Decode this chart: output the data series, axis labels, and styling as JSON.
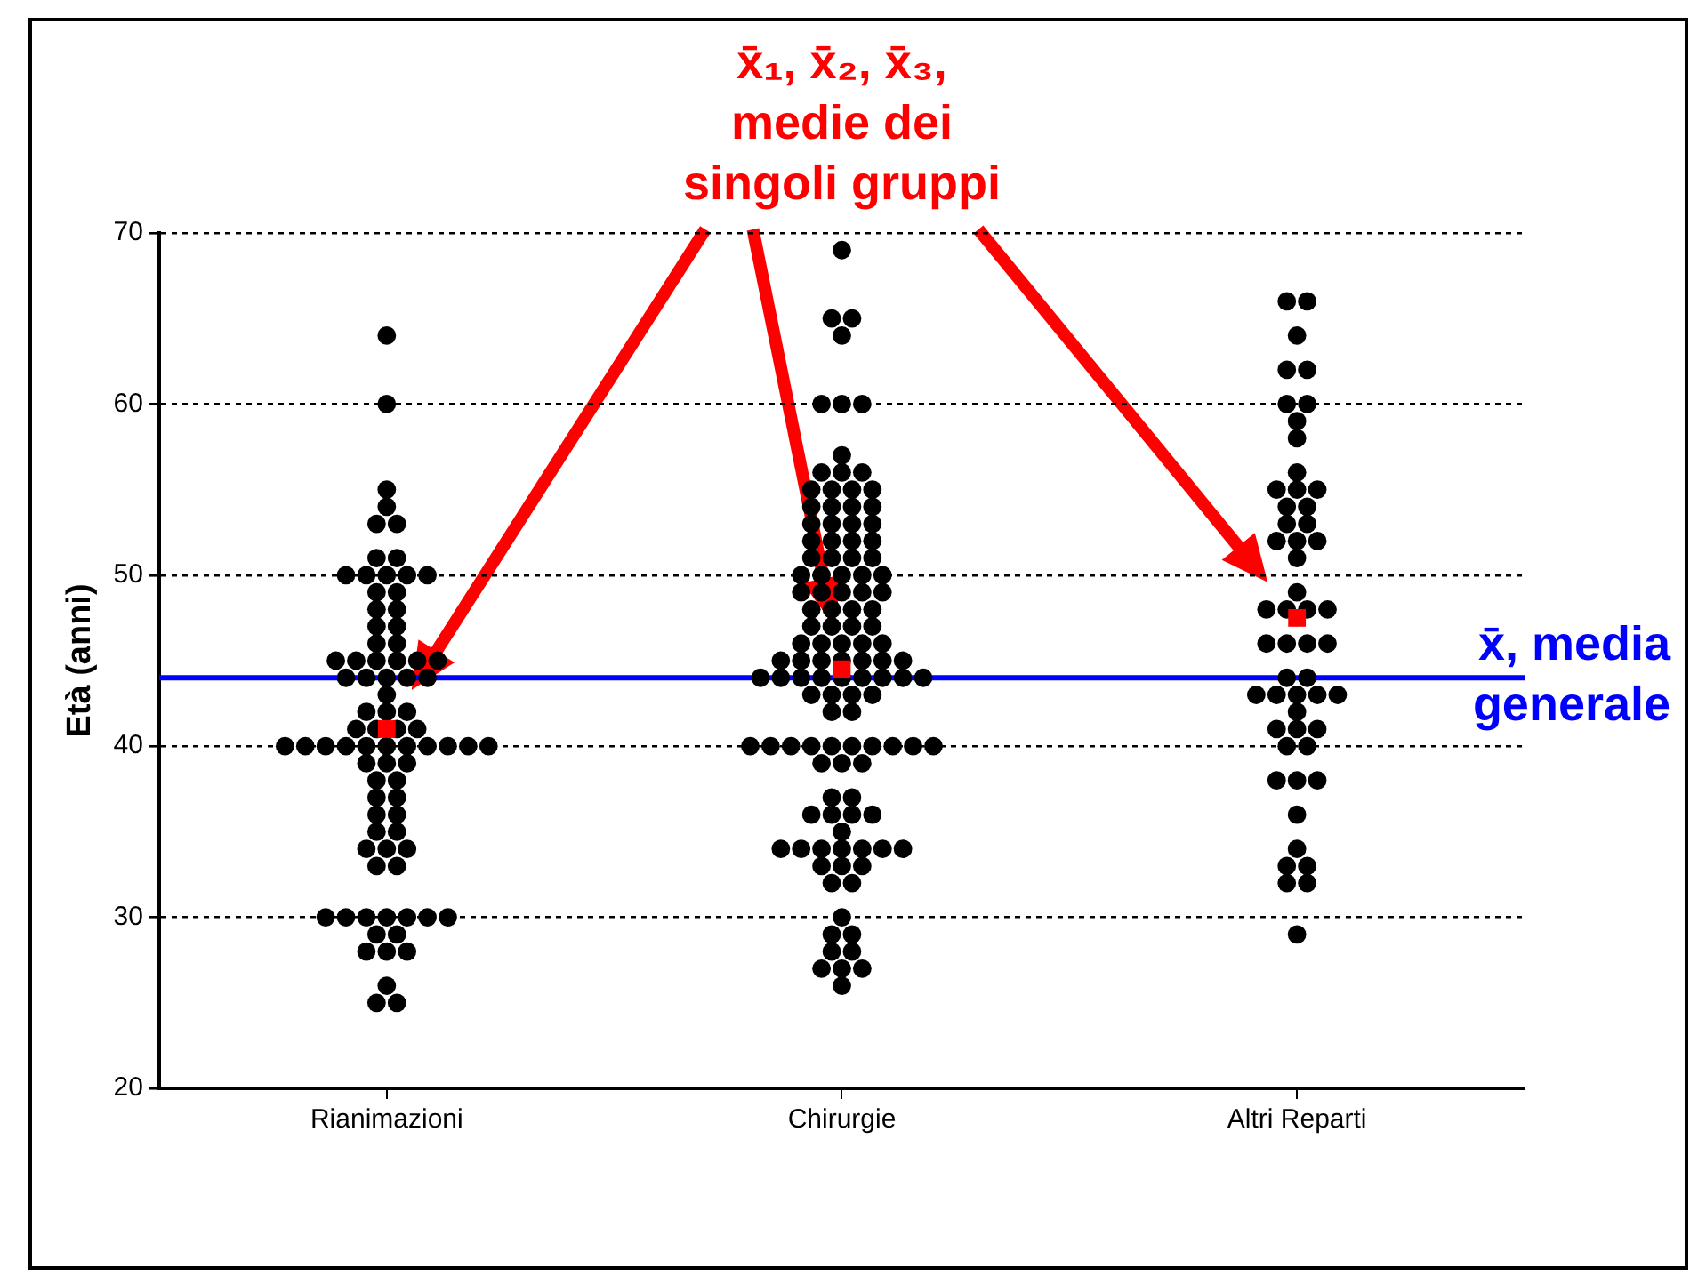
{
  "chart_data": {
    "type": "scatter",
    "ylabel": "Età (anni)",
    "categories": [
      "Rianimazioni",
      "Chirurgie",
      "Altri Reparti"
    ],
    "ylim": [
      20,
      70
    ],
    "yticks": [
      20,
      30,
      40,
      50,
      60,
      70
    ],
    "grid": "y",
    "legend": false,
    "annotations": [
      "x̄₁, x̄₂, x̄₃,\nmedie dei\nsingoli gruppi"
    ],
    "ref_lines": [
      {
        "axis": "y",
        "value": 44,
        "label": "x̄, media\ngenerale",
        "color": "#0000ff"
      }
    ],
    "series": [
      {
        "type": "scatter",
        "color": "#000000",
        "marker": "circle",
        "x": [
          "Rianimazioni",
          "Rianimazioni",
          "Rianimazioni",
          "Rianimazioni",
          "Rianimazioni",
          "Rianimazioni",
          "Rianimazioni",
          "Rianimazioni",
          "Rianimazioni",
          "Rianimazioni",
          "Rianimazioni",
          "Rianimazioni",
          "Rianimazioni",
          "Rianimazioni",
          "Rianimazioni",
          "Rianimazioni",
          "Rianimazioni",
          "Rianimazioni",
          "Rianimazioni",
          "Rianimazioni",
          "Rianimazioni",
          "Rianimazioni",
          "Rianimazioni",
          "Rianimazioni",
          "Rianimazioni",
          "Rianimazioni",
          "Rianimazioni",
          "Rianimazioni",
          "Rianimazioni",
          "Rianimazioni",
          "Rianimazioni",
          "Rianimazioni",
          "Rianimazioni",
          "Rianimazioni",
          "Rianimazioni",
          "Rianimazioni",
          "Rianimazioni",
          "Rianimazioni",
          "Rianimazioni",
          "Rianimazioni",
          "Rianimazioni",
          "Rianimazioni",
          "Rianimazioni",
          "Rianimazioni",
          "Rianimazioni",
          "Rianimazioni",
          "Rianimazioni",
          "Rianimazioni",
          "Rianimazioni",
          "Rianimazioni",
          "Rianimazioni",
          "Rianimazioni",
          "Rianimazioni",
          "Rianimazioni",
          "Rianimazioni",
          "Rianimazioni",
          "Rianimazioni",
          "Rianimazioni",
          "Rianimazioni",
          "Rianimazioni",
          "Rianimazioni",
          "Rianimazioni",
          "Rianimazioni",
          "Rianimazioni",
          "Rianimazioni",
          "Rianimazioni",
          "Rianimazioni",
          "Rianimazioni",
          "Rianimazioni",
          "Rianimazioni",
          "Rianimazioni",
          "Rianimazioni",
          "Rianimazioni",
          "Rianimazioni",
          "Rianimazioni",
          "Rianimazioni",
          "Rianimazioni",
          "Rianimazioni",
          "Rianimazioni",
          "Rianimazioni",
          "Rianimazioni",
          "Rianimazioni"
        ],
        "values": [
          64,
          60,
          55,
          54,
          53,
          53,
          51,
          51,
          50,
          50,
          50,
          50,
          50,
          49,
          49,
          48,
          48,
          47,
          47,
          46,
          46,
          45,
          45,
          45,
          45,
          45,
          45,
          44,
          44,
          44,
          44,
          44,
          43,
          42,
          42,
          42,
          41,
          41,
          41,
          41,
          40,
          40,
          40,
          40,
          40,
          40,
          40,
          40,
          40,
          40,
          40,
          39,
          39,
          39,
          38,
          38,
          37,
          37,
          36,
          36,
          35,
          35,
          34,
          34,
          34,
          33,
          33,
          30,
          30,
          30,
          30,
          30,
          30,
          30,
          29,
          29,
          28,
          28,
          28,
          26,
          25,
          25
        ]
      },
      {
        "type": "scatter",
        "color": "#000000",
        "marker": "circle",
        "x": [
          "Chirurgie",
          "Chirurgie",
          "Chirurgie",
          "Chirurgie",
          "Chirurgie",
          "Chirurgie",
          "Chirurgie",
          "Chirurgie",
          "Chirurgie",
          "Chirurgie",
          "Chirurgie",
          "Chirurgie",
          "Chirurgie",
          "Chirurgie",
          "Chirurgie",
          "Chirurgie",
          "Chirurgie",
          "Chirurgie",
          "Chirurgie",
          "Chirurgie",
          "Chirurgie",
          "Chirurgie",
          "Chirurgie",
          "Chirurgie",
          "Chirurgie",
          "Chirurgie",
          "Chirurgie",
          "Chirurgie",
          "Chirurgie",
          "Chirurgie",
          "Chirurgie",
          "Chirurgie",
          "Chirurgie",
          "Chirurgie",
          "Chirurgie",
          "Chirurgie",
          "Chirurgie",
          "Chirurgie",
          "Chirurgie",
          "Chirurgie",
          "Chirurgie",
          "Chirurgie",
          "Chirurgie",
          "Chirurgie",
          "Chirurgie",
          "Chirurgie",
          "Chirurgie",
          "Chirurgie",
          "Chirurgie",
          "Chirurgie",
          "Chirurgie",
          "Chirurgie",
          "Chirurgie",
          "Chirurgie",
          "Chirurgie",
          "Chirurgie",
          "Chirurgie",
          "Chirurgie",
          "Chirurgie",
          "Chirurgie",
          "Chirurgie",
          "Chirurgie",
          "Chirurgie",
          "Chirurgie",
          "Chirurgie",
          "Chirurgie",
          "Chirurgie",
          "Chirurgie",
          "Chirurgie",
          "Chirurgie",
          "Chirurgie",
          "Chirurgie",
          "Chirurgie",
          "Chirurgie",
          "Chirurgie",
          "Chirurgie",
          "Chirurgie",
          "Chirurgie",
          "Chirurgie",
          "Chirurgie",
          "Chirurgie",
          "Chirurgie",
          "Chirurgie",
          "Chirurgie",
          "Chirurgie",
          "Chirurgie",
          "Chirurgie",
          "Chirurgie",
          "Chirurgie",
          "Chirurgie",
          "Chirurgie",
          "Chirurgie",
          "Chirurgie",
          "Chirurgie",
          "Chirurgie",
          "Chirurgie",
          "Chirurgie",
          "Chirurgie",
          "Chirurgie",
          "Chirurgie",
          "Chirurgie",
          "Chirurgie",
          "Chirurgie",
          "Chirurgie",
          "Chirurgie",
          "Chirurgie",
          "Chirurgie",
          "Chirurgie",
          "Chirurgie",
          "Chirurgie",
          "Chirurgie",
          "Chirurgie",
          "Chirurgie",
          "Chirurgie",
          "Chirurgie",
          "Chirurgie",
          "Chirurgie"
        ],
        "values": [
          69,
          65,
          65,
          64,
          60,
          60,
          60,
          57,
          56,
          56,
          56,
          55,
          55,
          55,
          55,
          54,
          54,
          54,
          54,
          53,
          53,
          53,
          53,
          52,
          52,
          52,
          52,
          51,
          51,
          51,
          51,
          50,
          50,
          50,
          50,
          50,
          49,
          49,
          49,
          49,
          49,
          48,
          48,
          48,
          48,
          47,
          47,
          47,
          47,
          46,
          46,
          46,
          46,
          46,
          45,
          45,
          45,
          45,
          45,
          45,
          45,
          44,
          44,
          44,
          44,
          44,
          44,
          44,
          44,
          44,
          43,
          43,
          43,
          43,
          42,
          42,
          40,
          40,
          40,
          40,
          40,
          40,
          40,
          40,
          40,
          40,
          39,
          39,
          39,
          37,
          37,
          36,
          36,
          36,
          36,
          35,
          34,
          34,
          34,
          34,
          34,
          34,
          34,
          33,
          33,
          33,
          32,
          32,
          30,
          29,
          29,
          28,
          28,
          27,
          27,
          27,
          26
        ]
      },
      {
        "type": "scatter",
        "color": "#000000",
        "marker": "circle",
        "x": [
          "Altri Reparti",
          "Altri Reparti",
          "Altri Reparti",
          "Altri Reparti",
          "Altri Reparti",
          "Altri Reparti",
          "Altri Reparti",
          "Altri Reparti",
          "Altri Reparti",
          "Altri Reparti",
          "Altri Reparti",
          "Altri Reparti",
          "Altri Reparti",
          "Altri Reparti",
          "Altri Reparti",
          "Altri Reparti",
          "Altri Reparti",
          "Altri Reparti",
          "Altri Reparti",
          "Altri Reparti",
          "Altri Reparti",
          "Altri Reparti",
          "Altri Reparti",
          "Altri Reparti",
          "Altri Reparti",
          "Altri Reparti",
          "Altri Reparti",
          "Altri Reparti",
          "Altri Reparti",
          "Altri Reparti",
          "Altri Reparti",
          "Altri Reparti",
          "Altri Reparti",
          "Altri Reparti",
          "Altri Reparti",
          "Altri Reparti",
          "Altri Reparti",
          "Altri Reparti",
          "Altri Reparti",
          "Altri Reparti",
          "Altri Reparti",
          "Altri Reparti",
          "Altri Reparti",
          "Altri Reparti",
          "Altri Reparti",
          "Altri Reparti",
          "Altri Reparti",
          "Altri Reparti",
          "Altri Reparti",
          "Altri Reparti",
          "Altri Reparti",
          "Altri Reparti",
          "Altri Reparti",
          "Altri Reparti"
        ],
        "values": [
          66,
          66,
          64,
          62,
          62,
          60,
          60,
          59,
          58,
          56,
          55,
          55,
          55,
          54,
          54,
          53,
          53,
          52,
          52,
          52,
          51,
          49,
          48,
          48,
          48,
          48,
          null,
          46,
          46,
          46,
          46,
          44,
          44,
          43,
          43,
          43,
          43,
          43,
          42,
          41,
          41,
          41,
          40,
          40,
          38,
          38,
          38,
          36,
          34,
          33,
          33,
          32,
          32,
          29
        ]
      },
      {
        "type": "scatter",
        "color": "#ff0000",
        "marker": "square",
        "x": [
          "Rianimazioni",
          "Chirurgie",
          "Altri Reparti"
        ],
        "values": [
          41,
          44.5,
          47.5
        ]
      }
    ]
  }
}
